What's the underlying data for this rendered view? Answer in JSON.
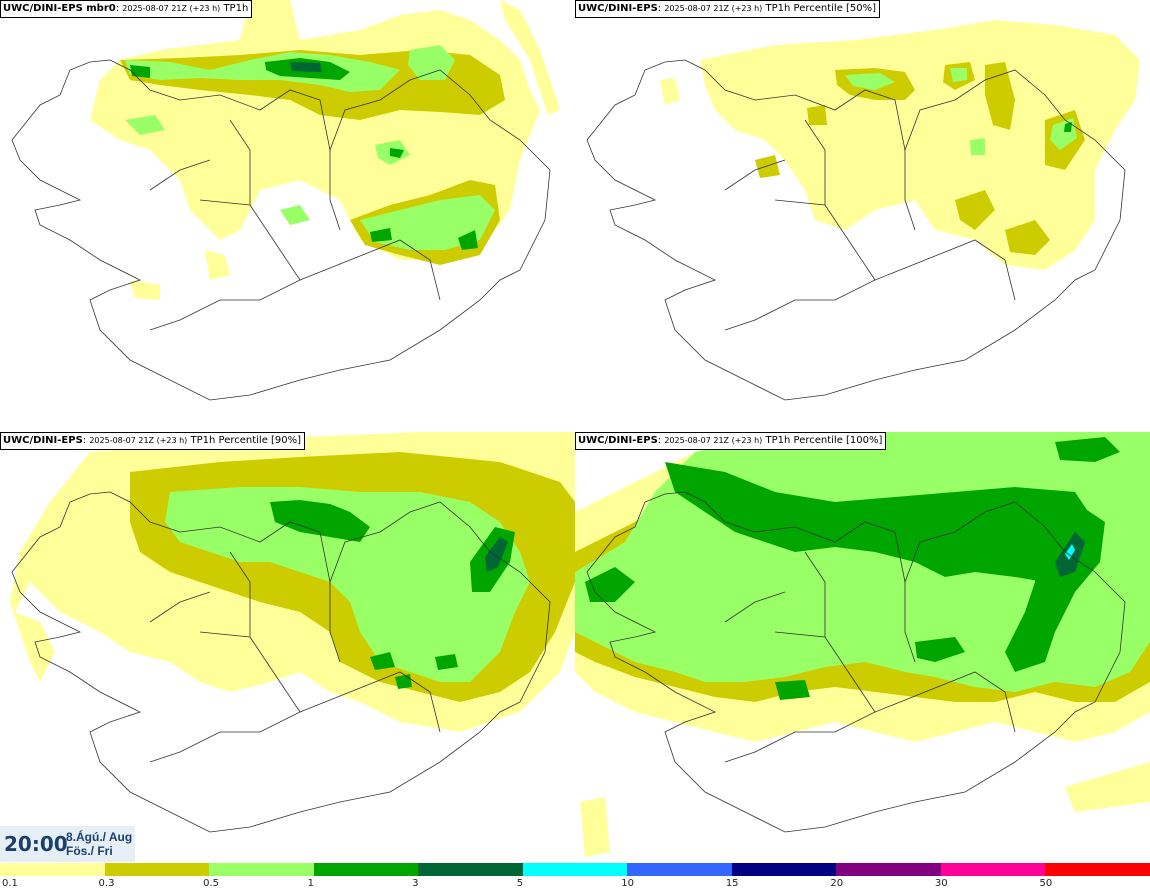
{
  "panels": [
    {
      "model": "UWC/DINI-EPS mbr0",
      "run": "2025-08-07 21Z (+23 h)",
      "param": "TP1h"
    },
    {
      "model": "UWC/DINI-EPS",
      "run": "2025-08-07 21Z (+23 h)",
      "param": "TP1h Percentile [50%]"
    },
    {
      "model": "UWC/DINI-EPS",
      "run": "2025-08-07 21Z (+23 h)",
      "param": "TP1h Percentile [90%]"
    },
    {
      "model": "UWC/DINI-EPS",
      "run": "2025-08-07 21Z (+23 h)",
      "param": "TP1h Percentile [100%]"
    }
  ],
  "valid_time": {
    "time": "20:00",
    "date": "8.Ágú./ Aug",
    "weekday": "Fös./ Fri"
  },
  "legend": {
    "colors": [
      "#ffff99",
      "#cccc00",
      "#99ff66",
      "#00a500",
      "#006633",
      "#00ffff",
      "#3366ff",
      "#000080",
      "#800080",
      "#ff0099",
      "#ff0000"
    ],
    "thresholds": [
      "0.1",
      "0.3",
      "0.5",
      "1",
      "3",
      "5",
      "10",
      "15",
      "20",
      "30",
      "50"
    ]
  },
  "precip_colors": {
    "light": "#ffff99",
    "olive": "#cccc00",
    "lightgreen": "#99ff66",
    "green": "#00a500",
    "darkgreen": "#006633",
    "cyan": "#00ffff"
  }
}
